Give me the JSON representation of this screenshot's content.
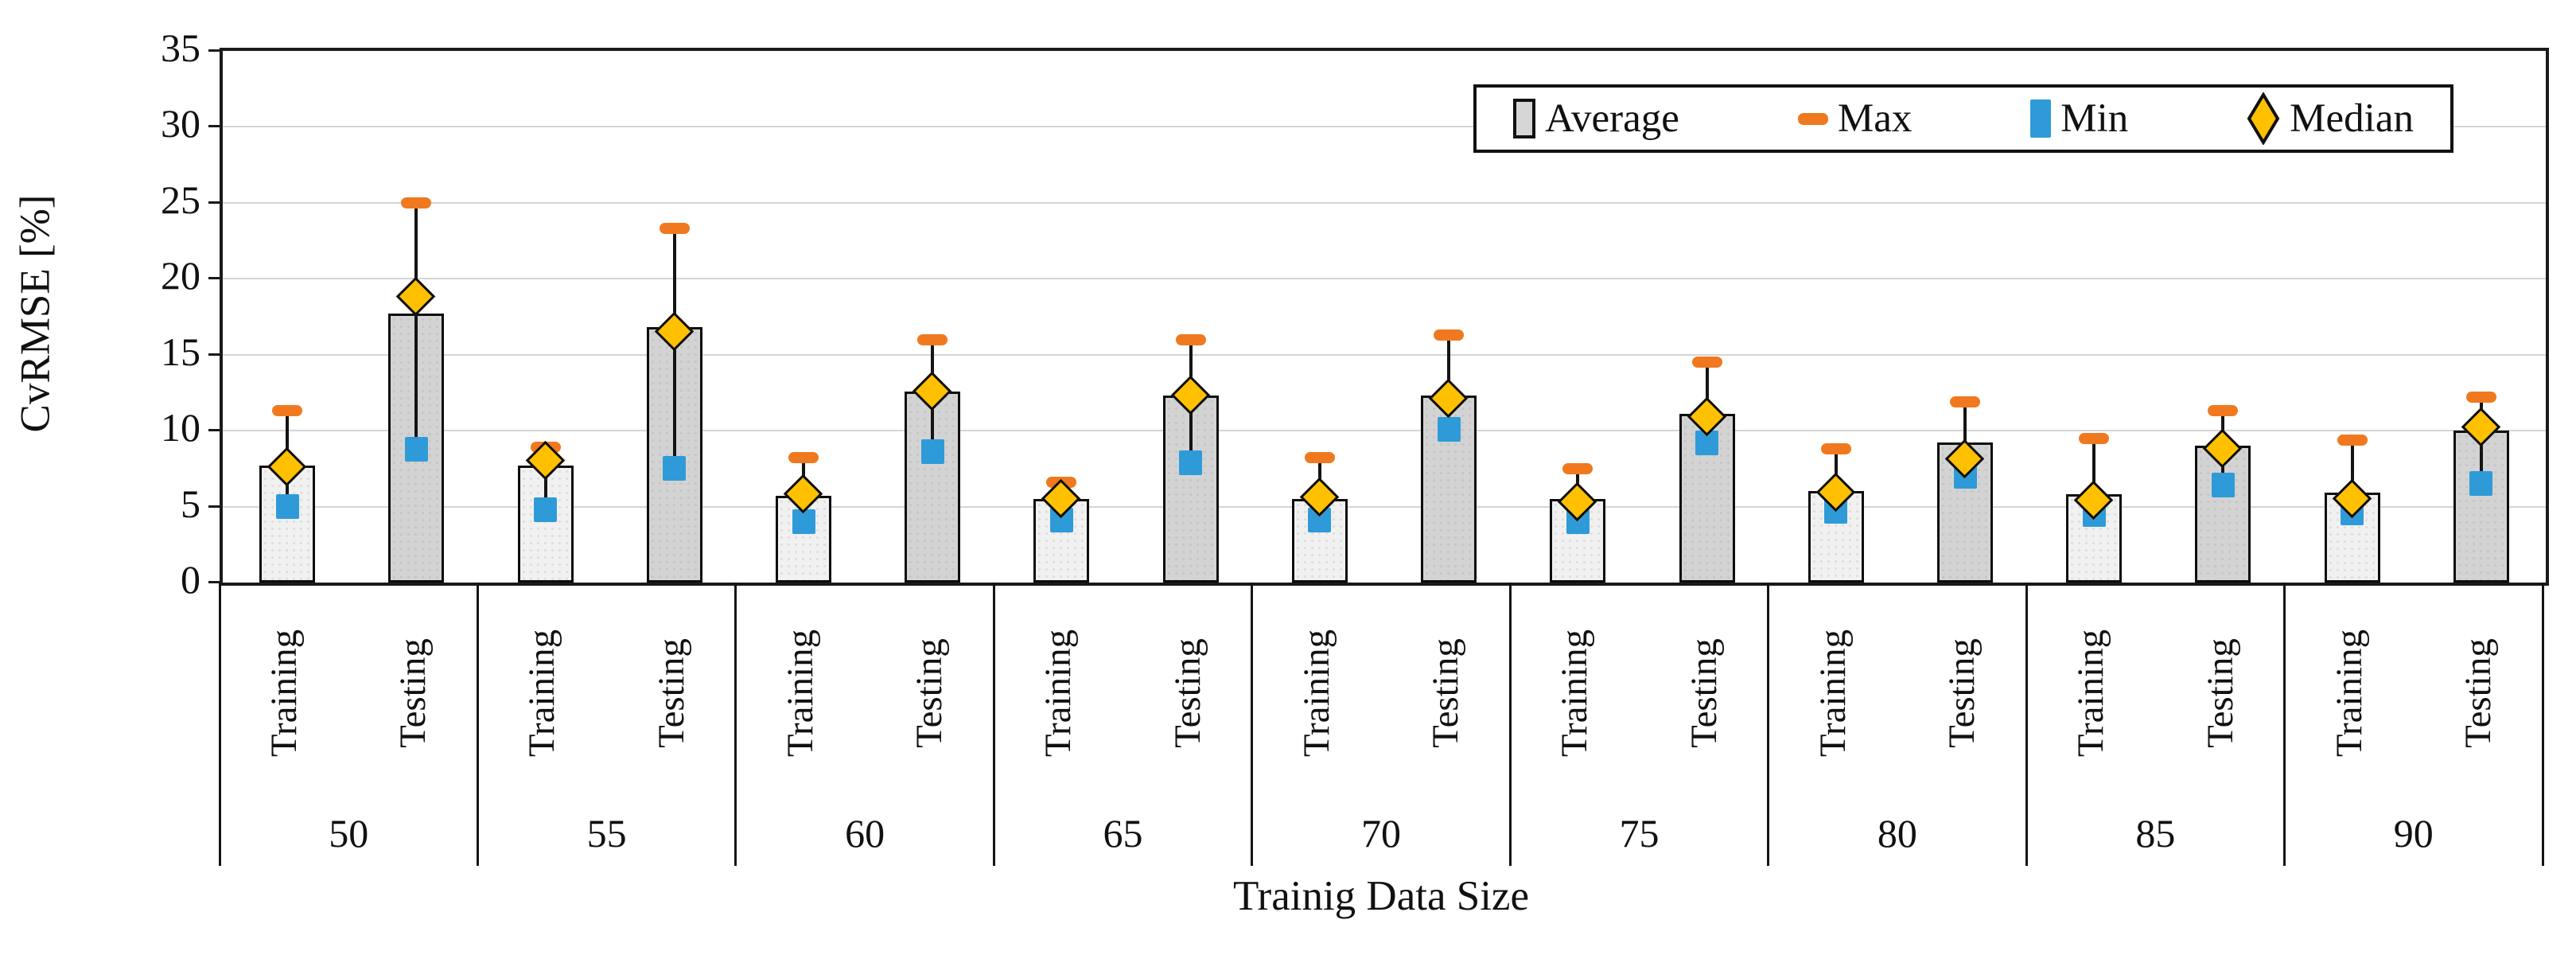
{
  "chart_data": {
    "type": "bar",
    "title": "",
    "ylabel": "CvRMSE [%]",
    "xlabel": "Trainig Data Size",
    "ylim": [
      0,
      35
    ],
    "yticks": [
      0,
      5,
      10,
      15,
      20,
      25,
      30,
      35
    ],
    "grid": true,
    "legend_position": "top-right-inside",
    "legend": [
      {
        "label": "Average",
        "marker": "bar-swatch"
      },
      {
        "label": "Max",
        "marker": "orange-dash"
      },
      {
        "label": "Min",
        "marker": "blue-square"
      },
      {
        "label": "Median",
        "marker": "gold-diamond"
      }
    ],
    "bar_labels": [
      "Training",
      "Testing"
    ],
    "categories": [
      "50",
      "55",
      "60",
      "65",
      "70",
      "75",
      "80",
      "85",
      "90"
    ],
    "groups": [
      {
        "size": "50",
        "bars": [
          {
            "type": "Training",
            "average": 7.7,
            "max": 11.3,
            "min": 5.0,
            "median": 7.6
          },
          {
            "type": "Testing",
            "average": 17.7,
            "max": 25.0,
            "min": 8.8,
            "median": 18.8
          }
        ]
      },
      {
        "size": "55",
        "bars": [
          {
            "type": "Training",
            "average": 7.7,
            "max": 8.9,
            "min": 4.8,
            "median": 8.0
          },
          {
            "type": "Testing",
            "average": 16.8,
            "max": 23.3,
            "min": 7.5,
            "median": 16.5
          }
        ]
      },
      {
        "size": "60",
        "bars": [
          {
            "type": "Training",
            "average": 5.7,
            "max": 8.2,
            "min": 4.0,
            "median": 5.8
          },
          {
            "type": "Testing",
            "average": 12.6,
            "max": 16.0,
            "min": 8.6,
            "median": 12.6
          }
        ]
      },
      {
        "size": "65",
        "bars": [
          {
            "type": "Training",
            "average": 5.5,
            "max": 6.6,
            "min": 4.1,
            "median": 5.5
          },
          {
            "type": "Testing",
            "average": 12.3,
            "max": 16.0,
            "min": 7.9,
            "median": 12.3
          }
        ]
      },
      {
        "size": "70",
        "bars": [
          {
            "type": "Training",
            "average": 5.5,
            "max": 8.2,
            "min": 4.1,
            "median": 5.6
          },
          {
            "type": "Testing",
            "average": 12.3,
            "max": 16.3,
            "min": 10.1,
            "median": 12.1
          }
        ]
      },
      {
        "size": "75",
        "bars": [
          {
            "type": "Training",
            "average": 5.5,
            "max": 7.5,
            "min": 4.0,
            "median": 5.3
          },
          {
            "type": "Testing",
            "average": 11.1,
            "max": 14.5,
            "min": 9.2,
            "median": 10.9
          }
        ]
      },
      {
        "size": "80",
        "bars": [
          {
            "type": "Training",
            "average": 6.0,
            "max": 8.8,
            "min": 4.7,
            "median": 5.9
          },
          {
            "type": "Testing",
            "average": 9.2,
            "max": 11.9,
            "min": 7.0,
            "median": 8.1
          }
        ]
      },
      {
        "size": "85",
        "bars": [
          {
            "type": "Training",
            "average": 5.8,
            "max": 9.5,
            "min": 4.5,
            "median": 5.4
          },
          {
            "type": "Testing",
            "average": 9.0,
            "max": 11.3,
            "min": 6.4,
            "median": 8.8
          }
        ]
      },
      {
        "size": "90",
        "bars": [
          {
            "type": "Training",
            "average": 5.9,
            "max": 9.4,
            "min": 4.6,
            "median": 5.5
          },
          {
            "type": "Testing",
            "average": 10.0,
            "max": 12.2,
            "min": 6.5,
            "median": 10.2
          }
        ]
      }
    ],
    "colors": {
      "max": "#f0791f",
      "min": "#2e9bd8",
      "median": "#ffc000",
      "training_bar_fill": "#f1f1f1",
      "testing_bar_fill": "#d3d3d3",
      "bar_border": "#0d0d0d",
      "gridline": "#d5d5d5",
      "axis": "#1a1a1a"
    }
  }
}
